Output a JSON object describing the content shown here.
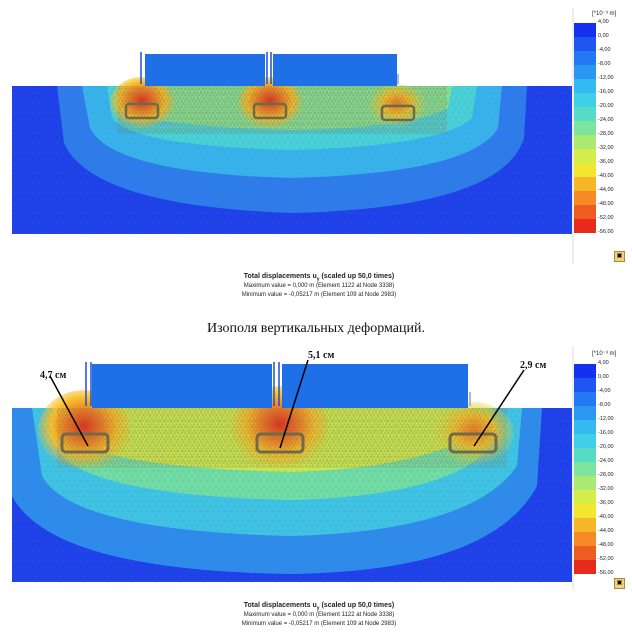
{
  "legend": {
    "unit": "[*10⁻³ m]",
    "ticks": [
      "4,00",
      "0,00",
      "-4,00",
      "-8,00",
      "-12,00",
      "-16,00",
      "-20,00",
      "-24,00",
      "-28,00",
      "-32,00",
      "-36,00",
      "-40,00",
      "-44,00",
      "-48,00",
      "-52,00",
      "-56,00"
    ],
    "colors": [
      "#1530ee",
      "#1f56f2",
      "#2378f4",
      "#2a98f3",
      "#34b9f2",
      "#3fcfe6",
      "#56dcc4",
      "#7ce49c",
      "#a8ea72",
      "#d3ee4a",
      "#f2e62f",
      "#f7b52a",
      "#f58a26",
      "#ee5c22",
      "#e82a1c"
    ]
  },
  "panel1": {
    "caption_title": "Total displacements u",
    "caption_subscript": "y",
    "caption_title_suffix": " (scaled up 50,0 times)",
    "max_line": "Maximum value = 0,000 m (Element 1122 at Node 3338)",
    "min_line": "Minimum value = -0,05217 m (Element 109 at Node 2983)"
  },
  "figure_title": "Изополя вертикальных деформаций.",
  "panel2": {
    "caption_title": "Total displacements u",
    "caption_subscript": "y",
    "caption_title_suffix": " (scaled up 50,0 times)",
    "max_line": "Maximum value = 0,000 m (Element 1122 at Node 3338)",
    "min_line": "Minimum value = -0,05217 m (Element 109 at Node 2983)",
    "annotations": [
      {
        "label": "4,7 см"
      },
      {
        "label": "5,1 см"
      },
      {
        "label": "2,9 см"
      }
    ]
  },
  "colors": {
    "deep_blue": "#1a3ff0",
    "load_blue": "#1f6fe6",
    "mesh": "#8a8a8a",
    "footing": "#6f6a4a"
  }
}
